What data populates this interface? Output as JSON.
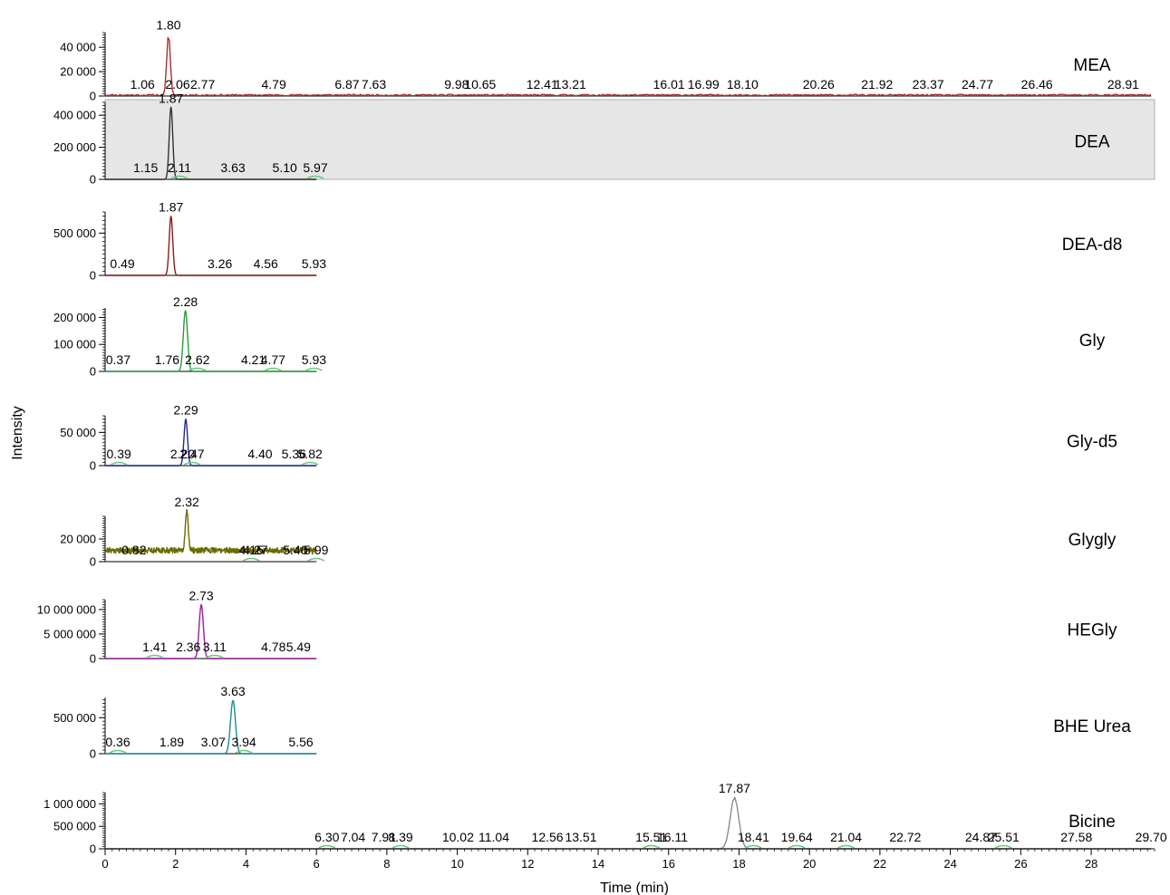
{
  "chart_data": {
    "type": "line",
    "xlabel": "Time (min)",
    "ylabel": "Intensity",
    "xlim": [
      0,
      29.8
    ],
    "x_ticks": [
      0,
      2,
      4,
      6,
      8,
      10,
      12,
      14,
      16,
      18,
      20,
      22,
      24,
      26,
      28
    ],
    "colors": {
      "red": "#a8302f",
      "black": "#333333",
      "dark_red": "#8b1a1a",
      "green": "#2c9a3c",
      "navy": "#1f2a8a",
      "olive": "#6b6b00",
      "purple": "#9a1f9a",
      "teal": "#1f8a9a",
      "gray": "#8c8c8c",
      "baseline_marker": "#6fc77f",
      "highlight_panel": "#e6e6e6"
    },
    "panels": [
      {
        "name": "MEA",
        "color": "#a8302f",
        "x_end": 29.7,
        "ylim": [
          0,
          52000
        ],
        "yticks": [
          {
            "value": 0,
            "label": "0"
          },
          {
            "value": 20000,
            "label": "20 000"
          },
          {
            "value": 40000,
            "label": "40 000"
          }
        ],
        "peak_x": 1.8,
        "peak_height": 50000,
        "peak_width": 0.05,
        "baseline": 800,
        "noise": 600,
        "noise_seed": 11,
        "highlight": false,
        "labels": [
          {
            "x": 1.8,
            "text": "1.80",
            "main": true
          },
          {
            "x": 1.06,
            "text": "1.06"
          },
          {
            "x": 2.06,
            "text": "2.06"
          },
          {
            "x": 2.77,
            "text": "2.77"
          },
          {
            "x": 4.79,
            "text": "4.79"
          },
          {
            "x": 6.87,
            "text": "6.87"
          },
          {
            "x": 7.63,
            "text": "7.63"
          },
          {
            "x": 9.98,
            "text": "9.98"
          },
          {
            "x": 10.65,
            "text": "10.65"
          },
          {
            "x": 12.41,
            "text": "12.41"
          },
          {
            "x": 13.21,
            "text": "13.21"
          },
          {
            "x": 16.01,
            "text": "16.01"
          },
          {
            "x": 16.99,
            "text": "16.99"
          },
          {
            "x": 18.1,
            "text": "18.10"
          },
          {
            "x": 20.26,
            "text": "20.26"
          },
          {
            "x": 21.92,
            "text": "21.92"
          },
          {
            "x": 23.37,
            "text": "23.37"
          },
          {
            "x": 24.77,
            "text": "24.77"
          },
          {
            "x": 26.46,
            "text": "26.46"
          },
          {
            "x": 28.91,
            "text": "28.91"
          }
        ],
        "markers": []
      },
      {
        "name": "DEA",
        "color": "#333333",
        "x_end": 6.0,
        "ylim": [
          0,
          480000
        ],
        "yticks": [
          {
            "value": 0,
            "label": "0"
          },
          {
            "value": 200000,
            "label": "200 000"
          },
          {
            "value": 400000,
            "label": "400 000"
          }
        ],
        "peak_x": 1.87,
        "peak_height": 450000,
        "peak_width": 0.05,
        "baseline": 0,
        "noise": 0,
        "noise_seed": 3,
        "highlight": true,
        "labels": [
          {
            "x": 1.87,
            "text": "1.87",
            "main": true
          },
          {
            "x": 1.15,
            "text": "1.15"
          },
          {
            "x": 2.11,
            "text": "2.11"
          },
          {
            "x": 3.63,
            "text": "3.63"
          },
          {
            "x": 5.1,
            "text": "5.10"
          },
          {
            "x": 5.97,
            "text": "5.97"
          }
        ],
        "markers": [
          2.11,
          5.97
        ]
      },
      {
        "name": "DEA-d8",
        "color": "#8b1a1a",
        "x_end": 6.0,
        "ylim": [
          0,
          750000
        ],
        "yticks": [
          {
            "value": 0,
            "label": "0"
          },
          {
            "value": 500000,
            "label": "500 000"
          }
        ],
        "peak_x": 1.87,
        "peak_height": 700000,
        "peak_width": 0.05,
        "baseline": 0,
        "noise": 0,
        "noise_seed": 5,
        "highlight": false,
        "labels": [
          {
            "x": 1.87,
            "text": "1.87",
            "main": true
          },
          {
            "x": 0.49,
            "text": "0.49"
          },
          {
            "x": 3.26,
            "text": "3.26"
          },
          {
            "x": 4.56,
            "text": "4.56"
          },
          {
            "x": 5.93,
            "text": "5.93"
          }
        ],
        "markers": []
      },
      {
        "name": "Gly",
        "color": "#2c9a3c",
        "x_end": 6.0,
        "ylim": [
          0,
          235000
        ],
        "yticks": [
          {
            "value": 0,
            "label": "0"
          },
          {
            "value": 100000,
            "label": "100 000"
          },
          {
            "value": 200000,
            "label": "200 000"
          }
        ],
        "peak_x": 2.28,
        "peak_height": 225000,
        "peak_width": 0.06,
        "baseline": 0,
        "noise": 0,
        "noise_seed": 7,
        "highlight": false,
        "labels": [
          {
            "x": 2.28,
            "text": "2.28",
            "main": true
          },
          {
            "x": 0.37,
            "text": "0.37"
          },
          {
            "x": 1.76,
            "text": "1.76"
          },
          {
            "x": 2.62,
            "text": "2.62"
          },
          {
            "x": 4.21,
            "text": "4.21"
          },
          {
            "x": 4.77,
            "text": "4.77"
          },
          {
            "x": 5.93,
            "text": "5.93"
          }
        ],
        "markers": [
          2.62,
          4.77,
          5.93
        ]
      },
      {
        "name": "Gly-d5",
        "color": "#1f2a8a",
        "x_end": 6.0,
        "ylim": [
          0,
          75000
        ],
        "yticks": [
          {
            "value": 0,
            "label": "0"
          },
          {
            "value": 50000,
            "label": "50 000"
          }
        ],
        "peak_x": 2.29,
        "peak_height": 70000,
        "peak_width": 0.05,
        "baseline": 0,
        "noise": 0,
        "noise_seed": 9,
        "highlight": false,
        "labels": [
          {
            "x": 2.29,
            "text": "2.29",
            "main": true
          },
          {
            "x": 0.39,
            "text": "0.39"
          },
          {
            "x": 2.2,
            "text": "2.20"
          },
          {
            "x": 2.47,
            "text": "2.47"
          },
          {
            "x": 4.4,
            "text": "4.40"
          },
          {
            "x": 5.36,
            "text": "5.36"
          },
          {
            "x": 5.82,
            "text": "5.82"
          }
        ],
        "markers": [
          0.39,
          2.47,
          5.82
        ]
      },
      {
        "name": "Glygly",
        "color": "#6b6b00",
        "x_end": 6.0,
        "ylim": [
          0,
          40000
        ],
        "yticks": [
          {
            "value": 0,
            "label": "0"
          },
          {
            "value": 20000,
            "label": "20 000"
          }
        ],
        "peak_x": 2.32,
        "peak_height": 35000,
        "peak_width": 0.04,
        "baseline": 10000,
        "noise": 2500,
        "noise_seed": 21,
        "highlight": false,
        "labels": [
          {
            "x": 2.32,
            "text": "2.32",
            "main": true
          },
          {
            "x": 0.82,
            "text": "0.82"
          },
          {
            "x": 4.15,
            "text": "4.15"
          },
          {
            "x": 4.27,
            "text": "4.27"
          },
          {
            "x": 5.4,
            "text": "5.40"
          },
          {
            "x": 5.99,
            "text": "5.99"
          }
        ],
        "markers": [
          4.15,
          5.99
        ]
      },
      {
        "name": "HEGly",
        "color": "#9a1f9a",
        "x_end": 6.0,
        "ylim": [
          0,
          12000000
        ],
        "yticks": [
          {
            "value": 0,
            "label": "0"
          },
          {
            "value": 5000000,
            "label": "5 000 000"
          },
          {
            "value": 10000000,
            "label": "10 000 000"
          }
        ],
        "peak_x": 2.73,
        "peak_height": 11000000,
        "peak_width": 0.06,
        "baseline": 0,
        "noise": 0,
        "noise_seed": 13,
        "highlight": false,
        "labels": [
          {
            "x": 2.73,
            "text": "2.73",
            "main": true
          },
          {
            "x": 1.41,
            "text": "1.41"
          },
          {
            "x": 2.36,
            "text": "2.36"
          },
          {
            "x": 3.11,
            "text": "3.11"
          },
          {
            "x": 4.78,
            "text": "4.78"
          },
          {
            "x": 5.49,
            "text": "5.49"
          }
        ],
        "markers": [
          1.41,
          3.11
        ]
      },
      {
        "name": "BHE Urea",
        "color": "#1f8a9a",
        "x_end": 6.0,
        "ylim": [
          0,
          780000
        ],
        "yticks": [
          {
            "value": 0,
            "label": "0"
          },
          {
            "value": 500000,
            "label": "500 000"
          }
        ],
        "peak_x": 3.63,
        "peak_height": 740000,
        "peak_width": 0.07,
        "baseline": 0,
        "noise": 0,
        "noise_seed": 15,
        "highlight": false,
        "labels": [
          {
            "x": 3.63,
            "text": "3.63",
            "main": true
          },
          {
            "x": 0.36,
            "text": "0.36"
          },
          {
            "x": 1.89,
            "text": "1.89"
          },
          {
            "x": 3.07,
            "text": "3.07"
          },
          {
            "x": 3.94,
            "text": "3.94"
          },
          {
            "x": 5.56,
            "text": "5.56"
          }
        ],
        "markers": [
          0.36,
          3.94
        ]
      },
      {
        "name": "Bicine",
        "color": "#8c8c8c",
        "x_end": 29.7,
        "ylim": [
          0,
          1250000
        ],
        "yticks": [
          {
            "value": 0,
            "label": "0"
          },
          {
            "value": 500000,
            "label": "500 000"
          },
          {
            "value": 1000000,
            "label": "1 000 000"
          }
        ],
        "peak_x": 17.87,
        "peak_height": 1150000,
        "peak_width": 0.12,
        "baseline": 0,
        "noise": 0,
        "noise_seed": 17,
        "highlight": false,
        "labels": [
          {
            "x": 17.87,
            "text": "17.87",
            "main": true
          },
          {
            "x": 6.3,
            "text": "6.30"
          },
          {
            "x": 7.04,
            "text": "7.04"
          },
          {
            "x": 7.91,
            "text": "7.91"
          },
          {
            "x": 8.39,
            "text": "8.39"
          },
          {
            "x": 10.02,
            "text": "10.02"
          },
          {
            "x": 11.04,
            "text": "11.04"
          },
          {
            "x": 12.56,
            "text": "12.56"
          },
          {
            "x": 13.51,
            "text": "13.51"
          },
          {
            "x": 15.51,
            "text": "15.51"
          },
          {
            "x": 16.11,
            "text": "16.11"
          },
          {
            "x": 18.41,
            "text": "18.41"
          },
          {
            "x": 19.64,
            "text": "19.64"
          },
          {
            "x": 21.04,
            "text": "21.04"
          },
          {
            "x": 22.72,
            "text": "22.72"
          },
          {
            "x": 24.87,
            "text": "24.87"
          },
          {
            "x": 25.51,
            "text": "25.51"
          },
          {
            "x": 27.58,
            "text": "27.58"
          },
          {
            "x": 29.7,
            "text": "29.70"
          }
        ],
        "markers": [
          6.3,
          8.39,
          15.51,
          18.41,
          19.64,
          21.04,
          25.51
        ]
      }
    ]
  }
}
